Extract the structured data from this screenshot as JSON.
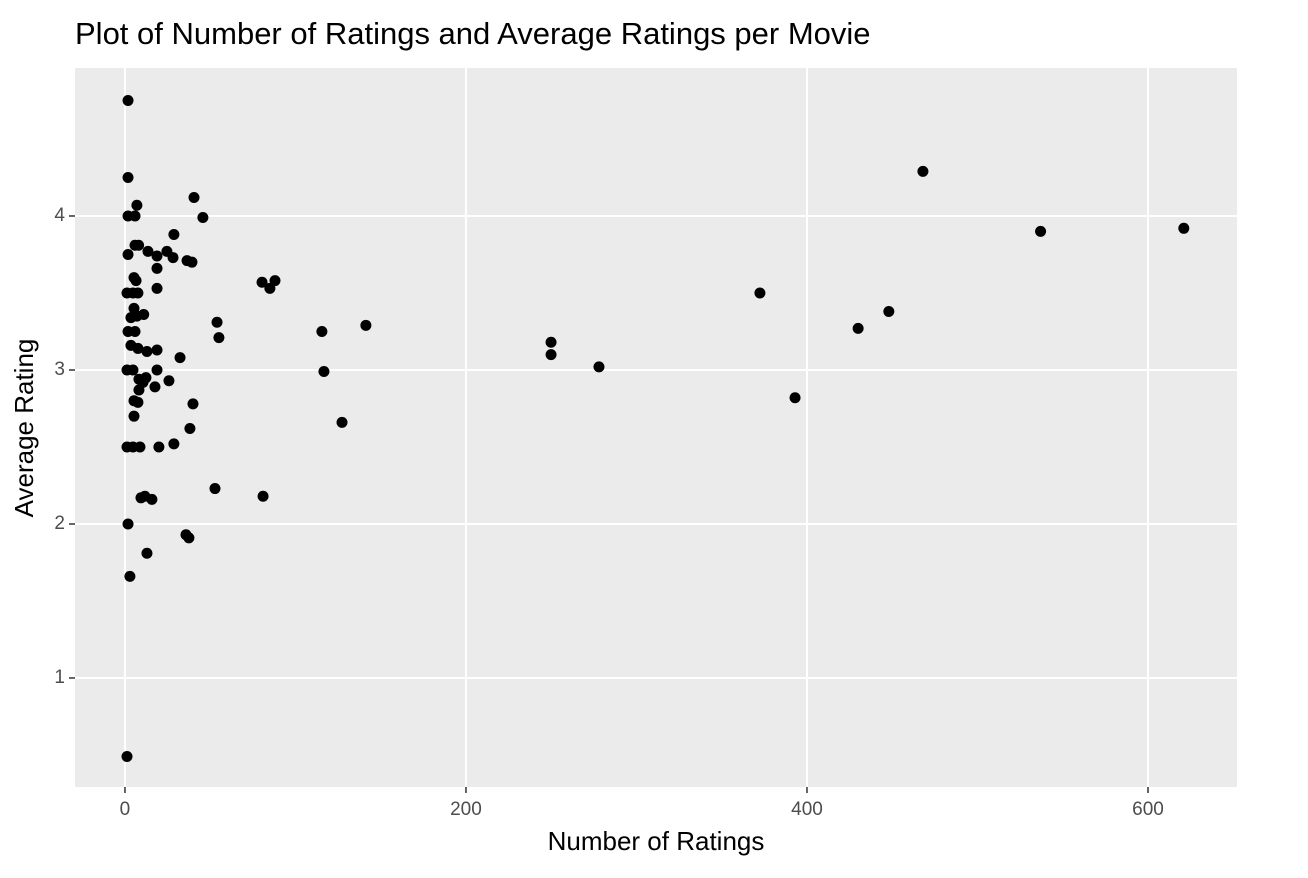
{
  "chart_data": {
    "type": "scatter",
    "title": "Plot of Number of Ratings and Average Ratings per Movie",
    "x_label": "Number of Ratings",
    "y_label": "Average Rating",
    "color": "#000000",
    "grid": true,
    "panel_color": "#ebebeb",
    "xlim": [
      -29.3,
      652.2
    ],
    "ylim": [
      0.292,
      4.961
    ],
    "xticks": [
      0,
      200,
      400,
      600
    ],
    "yticks": [
      1,
      2,
      3,
      4
    ],
    "x": [
      1.8,
      1.8,
      1.8,
      5.9,
      7,
      1.8,
      5.9,
      8,
      13.5,
      1.2,
      4.7,
      7.6,
      5.3,
      6.5,
      5.3,
      3.5,
      7,
      11,
      1.8,
      5.9,
      3.5,
      7.6,
      12.9,
      18.8,
      1.2,
      4.7,
      18.8,
      8.2,
      12.3,
      10.6,
      17.6,
      8.2,
      25.8,
      5.3,
      7.6,
      5.3,
      1.2,
      4.7,
      8.8,
      19.9,
      28.7,
      32.3,
      39.9,
      38.1,
      9.4,
      11.7,
      15.8,
      1.8,
      12.9,
      2.9,
      1.2,
      35.8,
      37.5,
      52.8,
      18.8,
      18.8,
      18.8,
      24.6,
      28.7,
      28.2,
      36.4,
      39.3,
      40.5,
      45.7,
      54,
      55.1,
      80.4,
      85,
      88,
      81,
      115.5,
      116.7,
      127.3,
      141.3,
      249.9,
      249.9,
      278,
      372.4,
      393,
      430,
      448,
      468,
      537,
      621
    ],
    "y": [
      4.75,
      4.25,
      4.0,
      4.0,
      4.07,
      3.75,
      3.81,
      3.81,
      3.77,
      3.5,
      3.5,
      3.5,
      3.6,
      3.58,
      3.4,
      3.34,
      3.35,
      3.36,
      3.25,
      3.25,
      3.16,
      3.14,
      3.12,
      3.13,
      3.0,
      3.0,
      3.0,
      2.94,
      2.95,
      2.92,
      2.89,
      2.87,
      2.93,
      2.8,
      2.79,
      2.7,
      2.5,
      2.5,
      2.5,
      2.5,
      2.52,
      3.08,
      2.78,
      2.62,
      2.17,
      2.18,
      2.16,
      2.0,
      1.81,
      1.66,
      0.49,
      1.93,
      1.91,
      2.23,
      3.74,
      3.66,
      3.53,
      3.77,
      3.88,
      3.73,
      3.71,
      3.7,
      4.12,
      3.99,
      3.31,
      3.21,
      3.57,
      3.53,
      3.58,
      2.18,
      3.25,
      2.99,
      2.66,
      3.29,
      3.18,
      3.1,
      3.02,
      3.5,
      2.82,
      3.27,
      3.38,
      4.29,
      3.9,
      3.92
    ]
  }
}
